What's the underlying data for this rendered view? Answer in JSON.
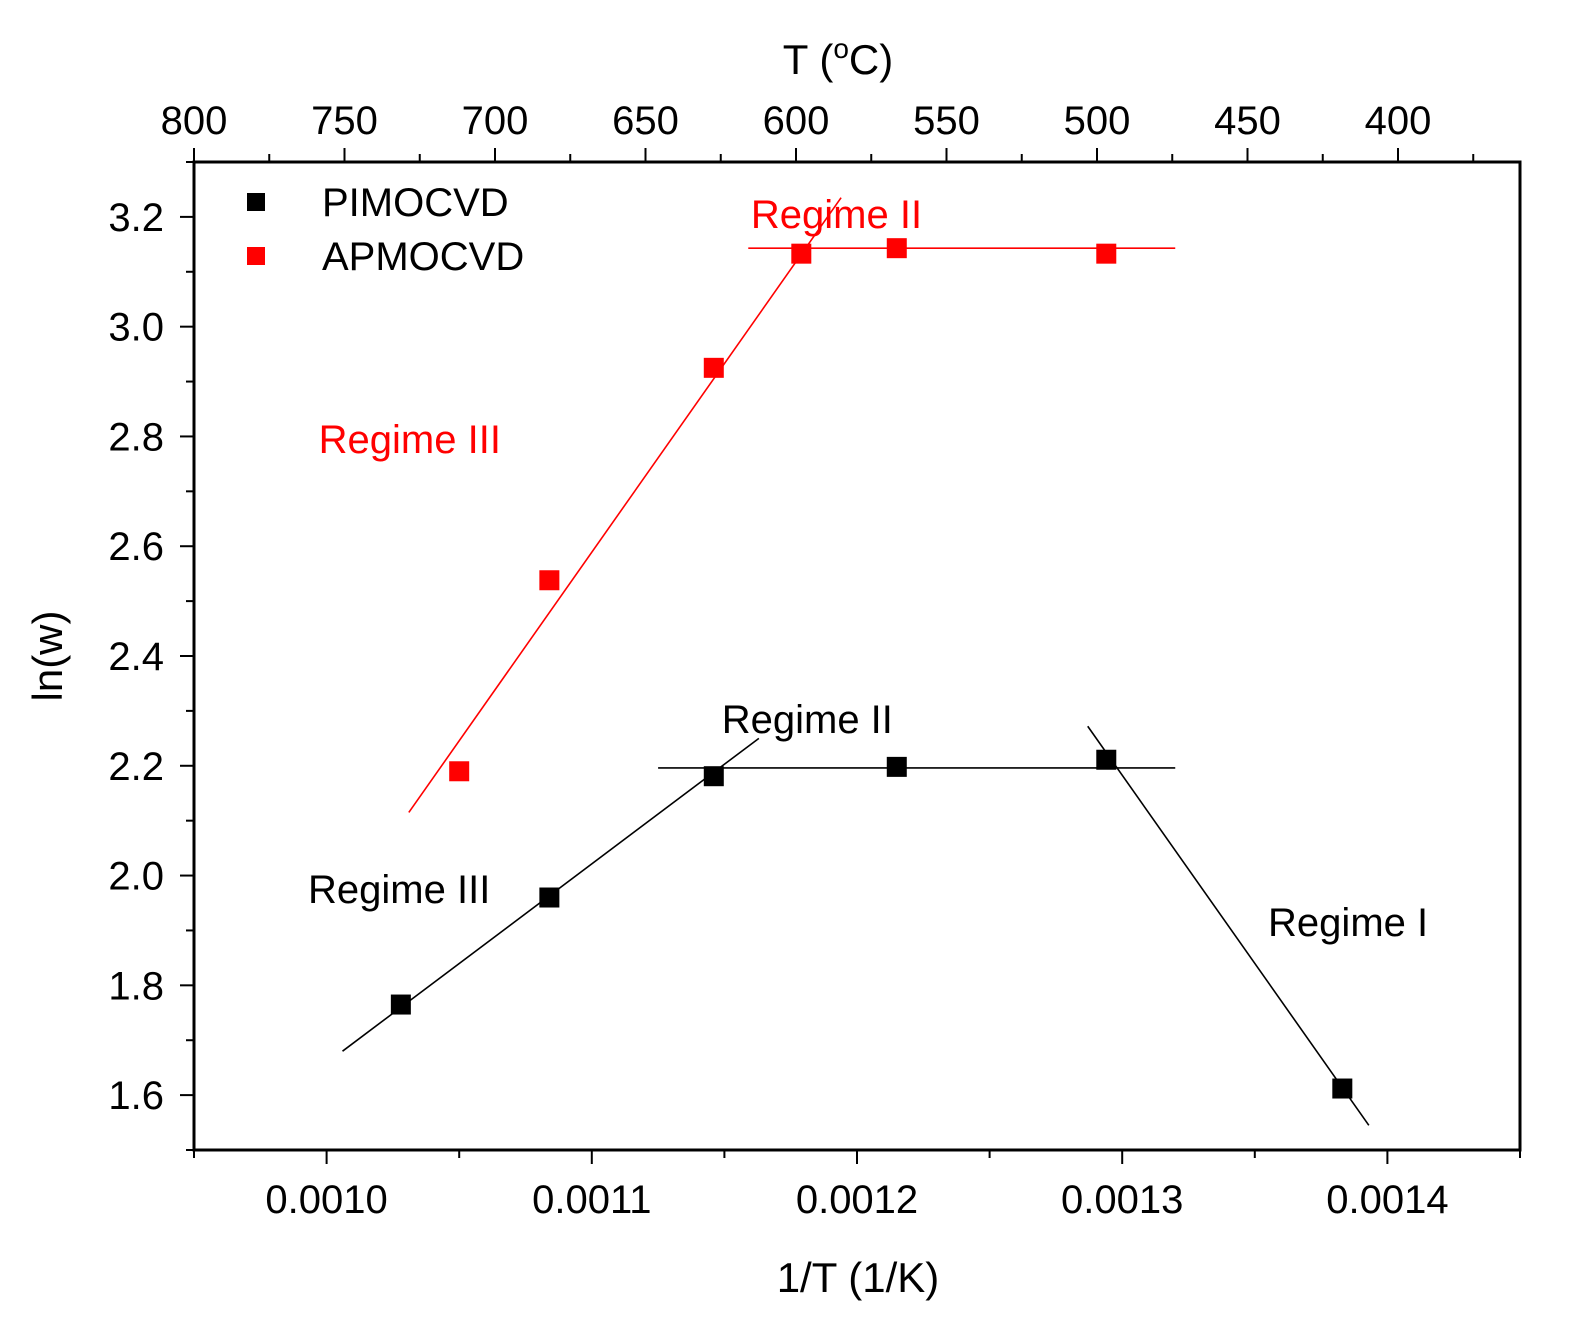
{
  "chart_data": {
    "type": "scatter",
    "title": "",
    "xlabel": "1/T (1/K)",
    "ylabel": "ln(w)",
    "top_axis_label_prefix": "T (",
    "top_axis_label_degree": "o",
    "top_axis_label_suffix": "C)",
    "xlim": [
      0.00095,
      0.00145
    ],
    "ylim": [
      1.5,
      3.3
    ],
    "x_ticks": [
      {
        "value": 0.001,
        "label": "0.0010"
      },
      {
        "value": 0.0011,
        "label": "0.0011"
      },
      {
        "value": 0.0012,
        "label": "0.0012"
      },
      {
        "value": 0.0013,
        "label": "0.0013"
      },
      {
        "value": 0.0014,
        "label": "0.0014"
      }
    ],
    "y_ticks": [
      {
        "value": 1.6,
        "label": "1.6"
      },
      {
        "value": 1.8,
        "label": "1.8"
      },
      {
        "value": 2.0,
        "label": "2.0"
      },
      {
        "value": 2.2,
        "label": "2.2"
      },
      {
        "value": 2.4,
        "label": "2.4"
      },
      {
        "value": 2.6,
        "label": "2.6"
      },
      {
        "value": 2.8,
        "label": "2.8"
      },
      {
        "value": 3.0,
        "label": "3.0"
      },
      {
        "value": 3.2,
        "label": "3.2"
      }
    ],
    "top_ticks": [
      {
        "celsius": 800,
        "label": "800"
      },
      {
        "celsius": 750,
        "label": "750"
      },
      {
        "celsius": 700,
        "label": "700"
      },
      {
        "celsius": 650,
        "label": "650"
      },
      {
        "celsius": 600,
        "label": "600"
      },
      {
        "celsius": 550,
        "label": "550"
      },
      {
        "celsius": 500,
        "label": "500"
      },
      {
        "celsius": 450,
        "label": "450"
      },
      {
        "celsius": 400,
        "label": "400"
      }
    ],
    "legend_position": "top-left",
    "series": [
      {
        "name": "PIMOCVD",
        "color": "#000000",
        "points": [
          {
            "x": 0.001028,
            "y": 1.765
          },
          {
            "x": 0.001084,
            "y": 1.96
          },
          {
            "x": 0.001146,
            "y": 2.181
          },
          {
            "x": 0.001215,
            "y": 2.198
          },
          {
            "x": 0.001294,
            "y": 2.211
          },
          {
            "x": 0.001383,
            "y": 1.612
          }
        ],
        "fit_lines": [
          {
            "x": [
              0.001006,
              0.001163
            ],
            "y": [
              1.68,
              2.25
            ]
          },
          {
            "x": [
              0.001125,
              0.00132
            ],
            "y": [
              2.196,
              2.196
            ]
          },
          {
            "x": [
              0.001287,
              0.001393
            ],
            "y": [
              2.272,
              1.545
            ]
          }
        ]
      },
      {
        "name": "APMOCVD",
        "color": "#ff0000",
        "points": [
          {
            "x": 0.00105,
            "y": 2.19
          },
          {
            "x": 0.001084,
            "y": 2.538
          },
          {
            "x": 0.001146,
            "y": 2.925
          },
          {
            "x": 0.001179,
            "y": 3.133
          },
          {
            "x": 0.001215,
            "y": 3.143
          },
          {
            "x": 0.001294,
            "y": 3.133
          }
        ],
        "fit_lines": [
          {
            "x": [
              0.001031,
              0.001194
            ],
            "y": [
              2.115,
              3.235
            ]
          },
          {
            "x": [
              0.001159,
              0.00132
            ],
            "y": [
              3.143,
              3.143
            ]
          }
        ]
      }
    ],
    "annotations": [
      {
        "text": "Regime II",
        "color": "#ff0000",
        "x": 0.00116,
        "y": 3.18
      },
      {
        "text": "Regime III",
        "color": "#ff0000",
        "x": 0.000997,
        "y": 2.77
      },
      {
        "text": "Regime II",
        "color": "#000000",
        "x": 0.001149,
        "y": 2.26
      },
      {
        "text": "Regime III",
        "color": "#000000",
        "x": 0.000993,
        "y": 1.95
      },
      {
        "text": "Regime I",
        "color": "#000000",
        "x": 0.001355,
        "y": 1.89
      }
    ]
  }
}
